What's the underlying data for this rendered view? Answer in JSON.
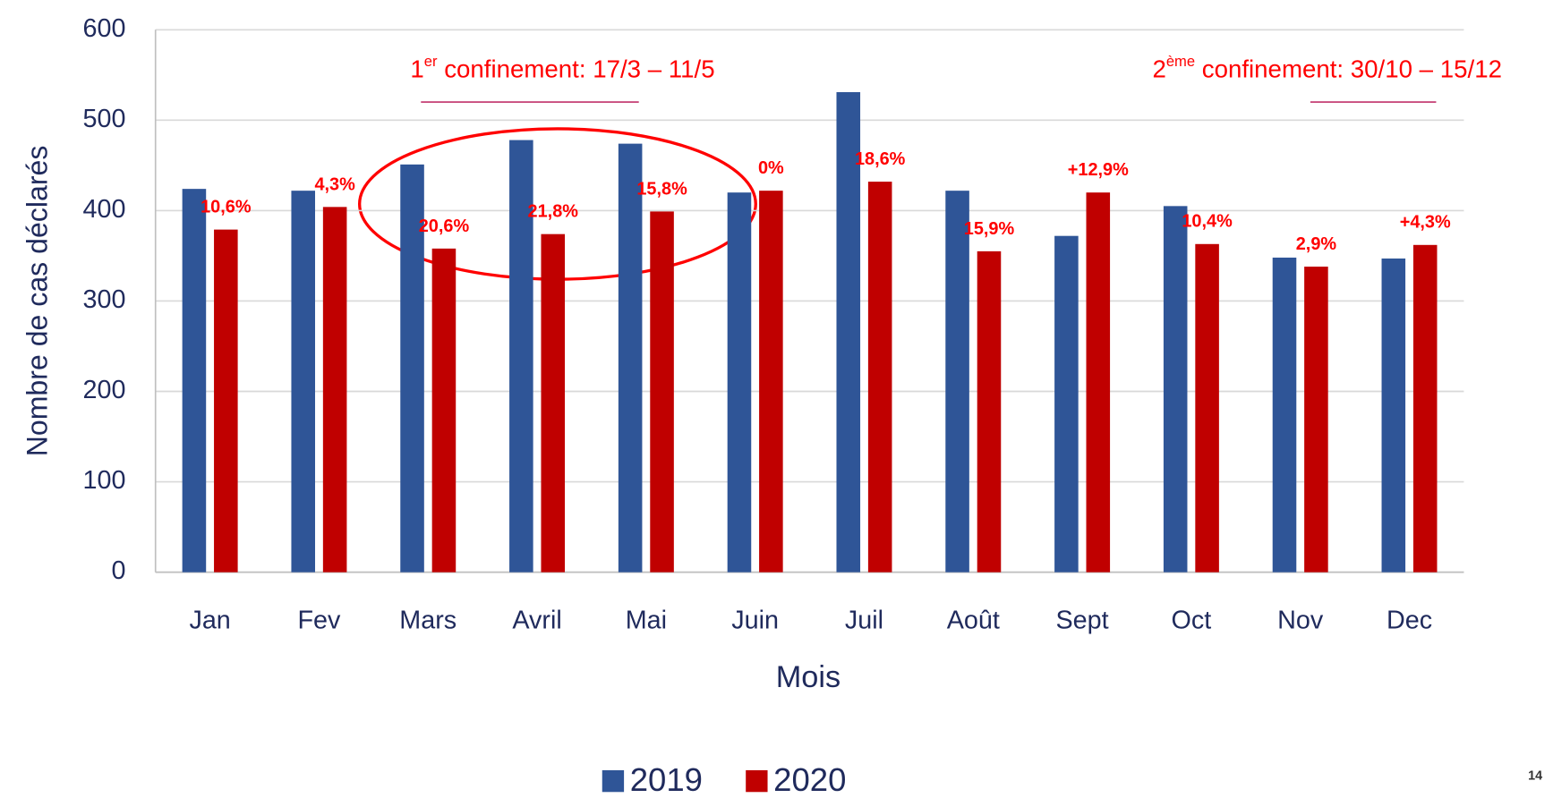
{
  "chart_data": {
    "type": "bar",
    "categories": [
      "Jan",
      "Fev",
      "Mars",
      "Avril",
      "Mai",
      "Juin",
      "Juil",
      "Août",
      "Sept",
      "Oct",
      "Nov",
      "Dec"
    ],
    "series": [
      {
        "name": "2019",
        "color": "#2f5597",
        "values": [
          424,
          422,
          451,
          478,
          474,
          420,
          531,
          422,
          372,
          405,
          348,
          347
        ]
      },
      {
        "name": "2020",
        "color": "#c00000",
        "values": [
          379,
          404,
          358,
          374,
          399,
          422,
          432,
          355,
          420,
          363,
          338,
          362
        ]
      }
    ],
    "change_labels": [
      "10,6%",
      "4,3%",
      "20,6%",
      "21,8%",
      "15,8%",
      "0%",
      "18,6%",
      "15,9%",
      "+12,9%",
      "10,4%",
      "2,9%",
      "+4,3%"
    ],
    "x_label": "Mois",
    "y_label": "Nombre de cas déclarés",
    "ylim": [
      0,
      600
    ],
    "yticks": [
      0,
      100,
      200,
      300,
      400,
      500,
      600
    ],
    "grid": true,
    "legend": "bottom",
    "annotations": [
      {
        "number": "1",
        "sup": "er",
        "text": " confinement: 17/3 – 11/5"
      },
      {
        "number": "2",
        "sup": "ème",
        "text": " confinement: 30/10 – 15/12"
      }
    ]
  },
  "page_number": "14"
}
